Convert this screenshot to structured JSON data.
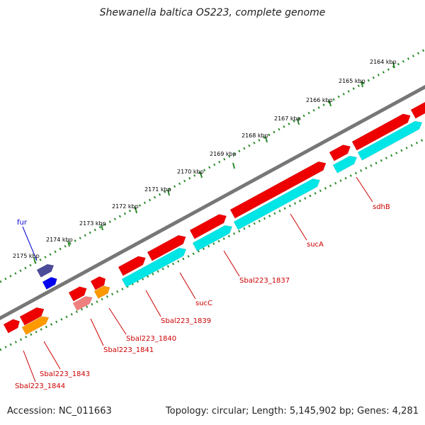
{
  "title": "Shewanella baltica OS223, complete genome",
  "accession": "Accession: NC_011663",
  "topology": "Topology: circular; Length: 5,145,902 bp; Genes: 4,281",
  "colors": {
    "backbone": "#888888",
    "tick_track": "#2e8b2e",
    "gene_forward": "#ee0000",
    "gene_reverse": "#00e6e6",
    "rna": "#ff9900",
    "pseudo": "#f08080",
    "fur_feature": "#4b4b99",
    "fur_feature_2": "#0000ee",
    "label_red": "#cc0000",
    "label_blue": "#0000cc"
  },
  "scale_labels": [
    "2164 kbp",
    "2165 kbp",
    "2166 kbp",
    "2167 kbp",
    "2168 kbp",
    "2169 kbp",
    "2170 kbp",
    "2171 kbp",
    "2172 kbp",
    "2173 kbp",
    "2174 kbp",
    "2175 kbp"
  ],
  "gene_labels": [
    "sdhB",
    "sucA",
    "Sbal223_1837",
    "sucC",
    "Sbal223_1839",
    "Sbal223_1840",
    "Sbal223_1841",
    "Sbal223_1843",
    "Sbal223_1844"
  ],
  "feature_label": "fur"
}
